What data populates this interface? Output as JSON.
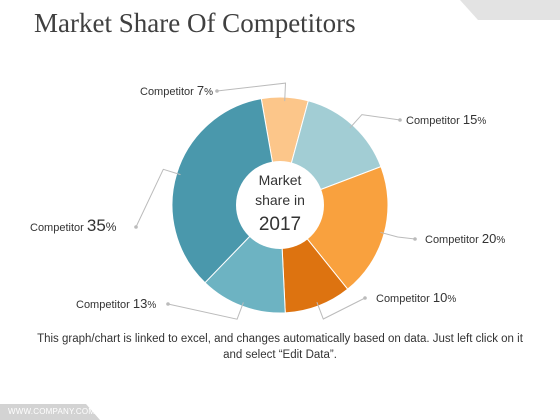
{
  "slide": {
    "title": "Market Share Of Competitors",
    "caption": "This graph/chart is linked to excel, and changes automatically based on data. Just left click on it and select “Edit Data”.",
    "footer": "WWW.COMPANY.COM"
  },
  "chart_data": {
    "type": "pie",
    "style": "donut",
    "center_label": [
      "Market",
      "share in",
      "2017"
    ],
    "series_label": "Competitor",
    "categories": [
      "Competitor",
      "Competitor",
      "Competitor",
      "Competitor",
      "Competitor",
      "Competitor"
    ],
    "values": [
      7,
      15,
      20,
      10,
      13,
      35
    ],
    "value_labels": [
      "7%",
      "15%",
      "20%",
      "10%",
      "13%",
      "35%"
    ],
    "colors": [
      "#FCC68A",
      "#A2CDD4",
      "#F9A13E",
      "#DD7310",
      "#6DB3C2",
      "#4A98AC"
    ],
    "leader_color": "#bbbbbb"
  }
}
